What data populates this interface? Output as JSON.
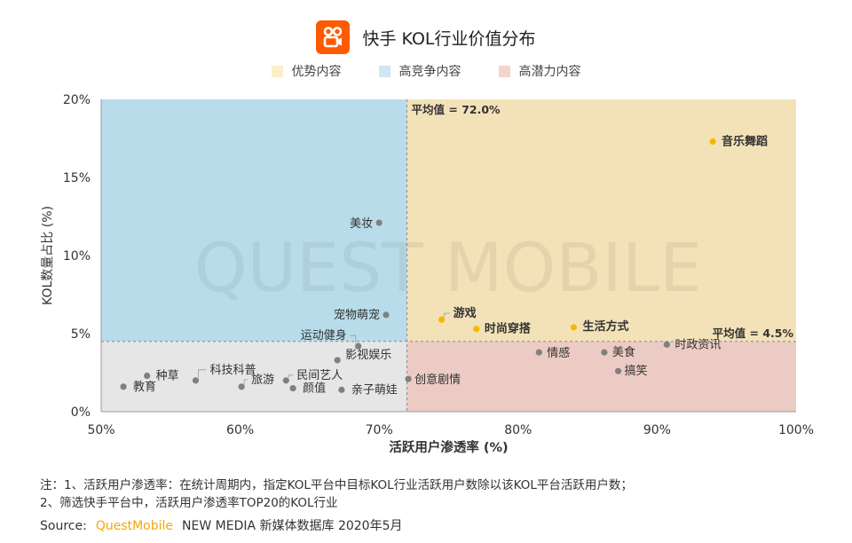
{
  "header": {
    "title": "快手 KOL行业价值分布",
    "logo_icon": "kuaishou-logo-icon"
  },
  "legend": [
    {
      "label": "优势内容",
      "color": "#fbefc7"
    },
    {
      "label": "高竞争内容",
      "color": "#cfe7f2"
    },
    {
      "label": "高潜力内容",
      "color": "#f4d4cd"
    }
  ],
  "chart_data": {
    "type": "scatter",
    "xlabel": "活跃用户渗透率 (%)",
    "ylabel": "KOL数量占比 (%)",
    "xlim": [
      50,
      100
    ],
    "ylim": [
      0,
      20
    ],
    "x_ticks": [
      "50%",
      "60%",
      "70%",
      "80%",
      "90%",
      "100%"
    ],
    "y_ticks": [
      "0%",
      "5%",
      "10%",
      "15%",
      "20%"
    ],
    "x_tick_values": [
      50,
      60,
      70,
      80,
      90,
      100
    ],
    "y_tick_values": [
      0,
      5,
      10,
      15,
      20
    ],
    "avg_x": 72.0,
    "avg_y": 4.5,
    "avg_x_label": "平均值 = 72.0%",
    "avg_y_label": "平均值 = 4.5%",
    "quadrant_colors": {
      "top_right": "#f3e2b8",
      "top_left": "#b9dcea",
      "bottom_left": "#e6e6e6",
      "bottom_right": "#eccbc4"
    },
    "point_colors": {
      "highlight": "#f5b800",
      "normal": "#808080"
    },
    "points": [
      {
        "label": "音乐舞蹈",
        "x": 94.0,
        "y": 17.3,
        "highlight": true
      },
      {
        "label": "游戏",
        "x": 74.5,
        "y": 5.9,
        "highlight": true
      },
      {
        "label": "时尚穿搭",
        "x": 77.0,
        "y": 5.3,
        "highlight": true
      },
      {
        "label": "生活方式",
        "x": 84.0,
        "y": 5.4,
        "highlight": true
      },
      {
        "label": "美妆",
        "x": 70.0,
        "y": 12.1,
        "highlight": false
      },
      {
        "label": "宠物萌宠",
        "x": 70.5,
        "y": 6.2,
        "highlight": false
      },
      {
        "label": "运动健身",
        "x": 68.5,
        "y": 4.2,
        "highlight": false
      },
      {
        "label": "影视娱乐",
        "x": 67.0,
        "y": 3.3,
        "highlight": false
      },
      {
        "label": "民间艺人",
        "x": 63.3,
        "y": 2.0,
        "highlight": false
      },
      {
        "label": "颜值",
        "x": 63.8,
        "y": 1.5,
        "highlight": false
      },
      {
        "label": "亲子萌娃",
        "x": 67.3,
        "y": 1.4,
        "highlight": false
      },
      {
        "label": "科技科普",
        "x": 56.8,
        "y": 2.0,
        "highlight": false
      },
      {
        "label": "旅游",
        "x": 60.1,
        "y": 1.6,
        "highlight": false
      },
      {
        "label": "种草",
        "x": 53.3,
        "y": 2.3,
        "highlight": false
      },
      {
        "label": "教育",
        "x": 51.6,
        "y": 1.6,
        "highlight": false
      },
      {
        "label": "创意剧情",
        "x": 72.1,
        "y": 2.1,
        "highlight": false
      },
      {
        "label": "情感",
        "x": 81.5,
        "y": 3.8,
        "highlight": false
      },
      {
        "label": "美食",
        "x": 86.2,
        "y": 3.8,
        "highlight": false
      },
      {
        "label": "搞笑",
        "x": 87.2,
        "y": 2.6,
        "highlight": false
      },
      {
        "label": "时政资讯",
        "x": 90.7,
        "y": 4.3,
        "highlight": false
      }
    ]
  },
  "watermark": "QUEST MOBILE",
  "notes": {
    "line1": "注：1、活跃用户渗透率：在统计周期内，指定KOL平台中目标KOL行业活跃用户数除以该KOL平台活跃用户数；",
    "line2": "2、筛选快手平台中，活跃用户渗透率TOP20的KOL行业"
  },
  "source": {
    "prefix": "Source:",
    "brand": "QuestMobile",
    "rest": "NEW MEDIA 新媒体数据库 2020年5月"
  }
}
